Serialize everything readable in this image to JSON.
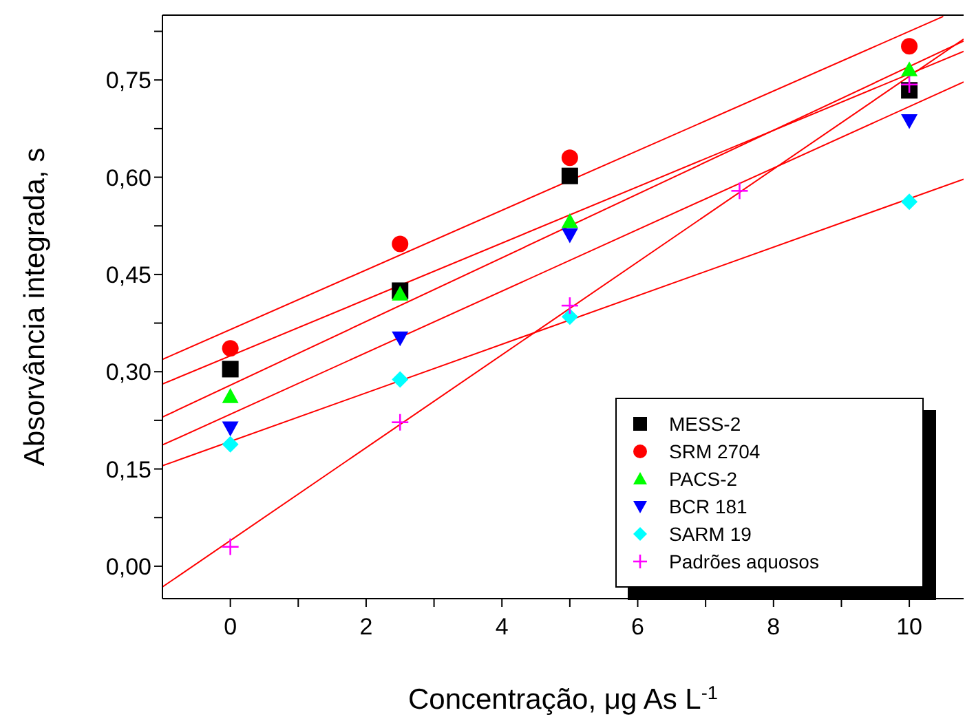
{
  "chart_data": {
    "type": "scatter",
    "xlabel": "Concentração, μg As L$^{-1}$",
    "ylabel": "Absorvância integrada, s",
    "xlim": [
      -1,
      10.8
    ],
    "ylim": [
      -0.05,
      0.85
    ],
    "xticks": [
      0,
      {
        "value": 1,
        "label": null
      },
      2,
      {
        "value": 3,
        "label": null
      },
      4,
      {
        "value": 5,
        "label": null
      },
      6,
      {
        "value": 7,
        "label": null
      },
      8,
      {
        "value": 9,
        "label": null
      },
      10
    ],
    "yticks": [
      {
        "value": 0,
        "label": "0,00"
      },
      {
        "value": 0.075,
        "label": null
      },
      {
        "value": 0.15,
        "label": "0,15"
      },
      {
        "value": 0.225,
        "label": null
      },
      {
        "value": 0.3,
        "label": "0,30"
      },
      {
        "value": 0.375,
        "label": null
      },
      {
        "value": 0.45,
        "label": "0,45"
      },
      {
        "value": 0.525,
        "label": null
      },
      {
        "value": 0.6,
        "label": "0,60"
      },
      {
        "value": 0.675,
        "label": null
      },
      {
        "value": 0.75,
        "label": "0,75"
      },
      {
        "value": 0.825,
        "label": null
      }
    ],
    "legend": "bottom right",
    "series": [
      {
        "name": "MESS-2",
        "color": "#000000",
        "marker": "square",
        "x": [
          0,
          2.5,
          5,
          10
        ],
        "values": [
          0.304,
          0.425,
          0.602,
          0.734
        ]
      },
      {
        "name": "SRM 2704",
        "color": "#ff0000",
        "marker": "circle",
        "x": [
          0,
          2.5,
          5,
          10
        ],
        "values": [
          0.336,
          0.497,
          0.63,
          0.802
        ]
      },
      {
        "name": "PACS-2",
        "color": "#00ff00",
        "marker": "triangle",
        "x": [
          0,
          2.5,
          5,
          10
        ],
        "values": [
          0.262,
          0.42,
          0.532,
          0.766
        ]
      },
      {
        "name": "BCR 181",
        "color": "#0000ff",
        "marker": "triangle-down",
        "x": [
          0,
          2.5,
          5,
          10
        ],
        "values": [
          0.213,
          0.352,
          0.511,
          0.687
        ]
      },
      {
        "name": "SARM 19",
        "color": "#00ffff",
        "marker": "diamond",
        "x": [
          0,
          2.5,
          5,
          10
        ],
        "values": [
          0.188,
          0.288,
          0.385,
          0.562
        ]
      },
      {
        "name": "Padrões aquosos",
        "color": "#ff00ff",
        "marker": "cross",
        "x": [
          0,
          2.5,
          5,
          7.5,
          10
        ],
        "values": [
          0.03,
          0.222,
          0.402,
          0.579,
          0.743
        ]
      },
      {
        "type": "line",
        "color": "#ff0000",
        "marker": "none",
        "x": [
          -1,
          10.5
        ],
        "values": [
          0.319,
          0.848
        ]
      },
      {
        "type": "line",
        "color": "#ff0000",
        "marker": "none",
        "x": [
          -1,
          10.8
        ],
        "values": [
          0.281,
          0.794
        ]
      },
      {
        "type": "line",
        "color": "#ff0000",
        "marker": "none",
        "x": [
          -1,
          10.8
        ],
        "values": [
          0.23,
          0.81
        ]
      },
      {
        "type": "line",
        "color": "#ff0000",
        "marker": "none",
        "x": [
          -1,
          10.8
        ],
        "values": [
          0.187,
          0.747
        ]
      },
      {
        "type": "line",
        "color": "#ff0000",
        "marker": "none",
        "x": [
          -1,
          10.8
        ],
        "values": [
          0.155,
          0.597
        ]
      },
      {
        "type": "line",
        "color": "#ff0000",
        "marker": "none",
        "x": [
          -1,
          10.8
        ],
        "values": [
          -0.032,
          0.813
        ]
      }
    ]
  }
}
